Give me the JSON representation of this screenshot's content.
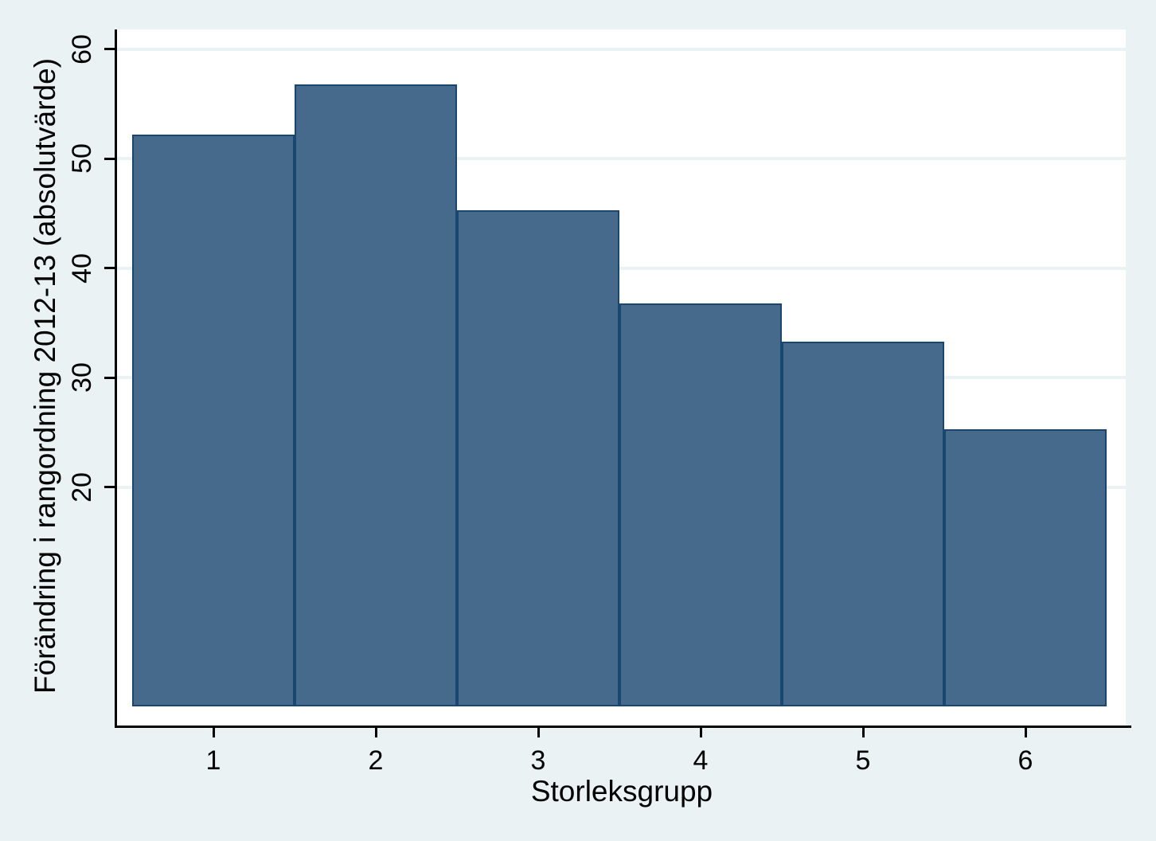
{
  "figure": {
    "background_color": "#EAF2F3",
    "plot_background_color": "#FFFFFF",
    "gridline_color": "#EAF2F3",
    "axis_color": "#000000",
    "text_color": "#000000"
  },
  "chart_data": {
    "type": "bar",
    "subtype": "histogram",
    "title": "",
    "xlabel": "Storleksgrupp",
    "ylabel": "Förändring i rangordning 2012-13 (absolutvärde)",
    "categories": [
      "1",
      "2",
      "3",
      "4",
      "5",
      "6"
    ],
    "values": [
      52.2,
      56.8,
      45.3,
      36.8,
      33.3,
      25.3
    ],
    "y_ticks": [
      20,
      30,
      40,
      50,
      60
    ],
    "ylim": [
      0,
      63
    ],
    "xlim": [
      0.5,
      6.5
    ],
    "grid": "horizontal",
    "legend": "none",
    "bar_fill_color": "#466A8C",
    "bar_border_color": "#1A476F"
  }
}
